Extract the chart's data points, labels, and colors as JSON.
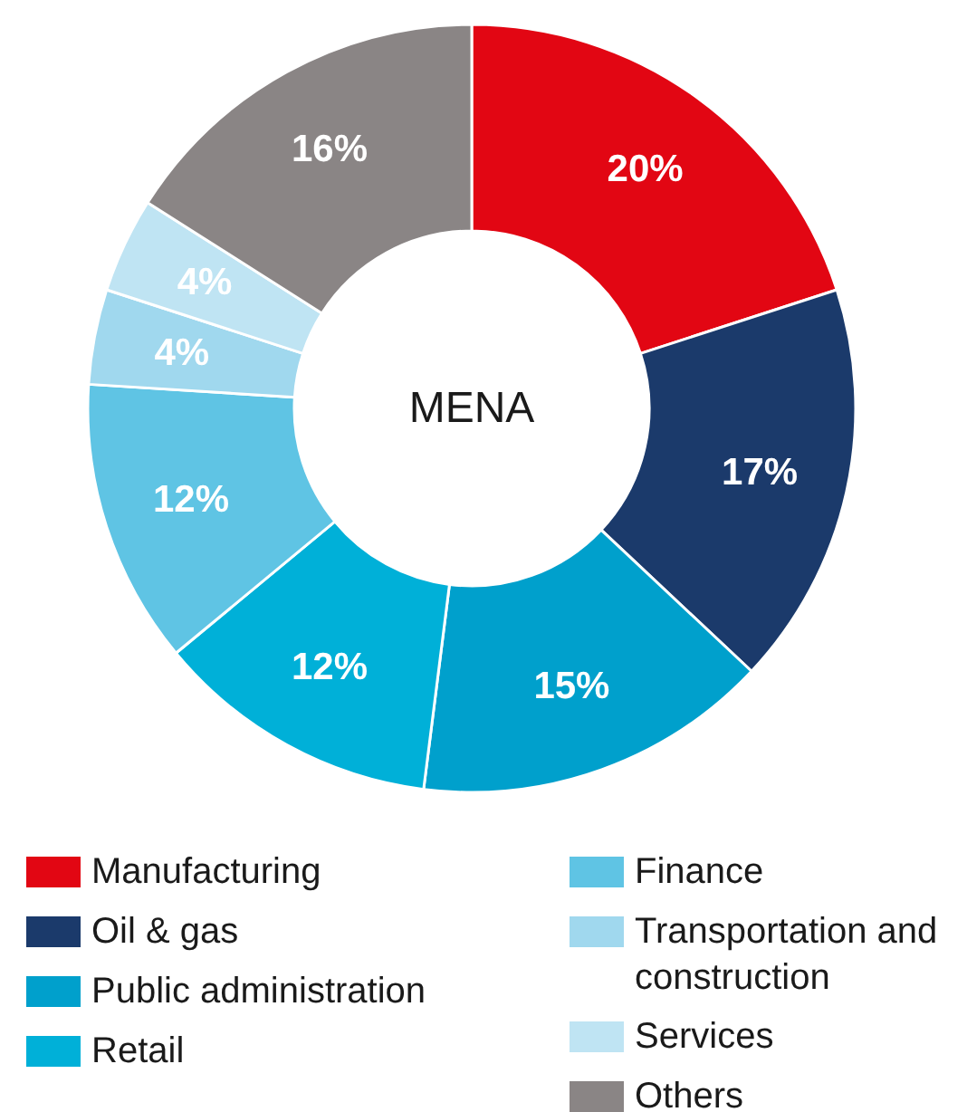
{
  "chart_data": {
    "type": "donut",
    "title": "MENA",
    "categories": [
      "Manufacturing",
      "Oil & gas",
      "Public administration",
      "Retail",
      "Finance",
      "Transportation and construction",
      "Services",
      "Others"
    ],
    "values": [
      20,
      17,
      15,
      12,
      12,
      4,
      4,
      16
    ],
    "value_labels": [
      "20%",
      "17%",
      "15%",
      "12%",
      "12%",
      "4%",
      "4%",
      "16%"
    ],
    "colors": [
      "#e20613",
      "#1b3a6b",
      "#00a0cc",
      "#00b0d8",
      "#5fc4e4",
      "#a0d8ee",
      "#bfe4f3",
      "#8a8585"
    ],
    "legend": "bottom"
  }
}
